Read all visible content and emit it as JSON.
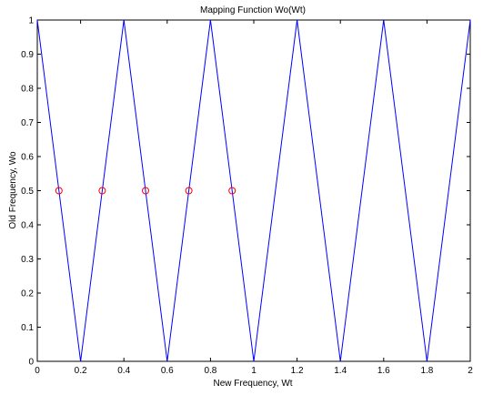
{
  "chart_data": {
    "type": "line",
    "title": "Mapping Function Wo(Wt)",
    "xlabel": "New Frequency, Wt",
    "ylabel": "Old Frequency, Wo",
    "xlim": [
      0,
      2
    ],
    "ylim": [
      0,
      1
    ],
    "xticks": [
      "0",
      "0.2",
      "0.4",
      "0.6",
      "0.8",
      "1",
      "1.2",
      "1.4",
      "1.6",
      "1.8",
      "2"
    ],
    "yticks": [
      "0",
      "0.1",
      "0.2",
      "0.3",
      "0.4",
      "0.5",
      "0.6",
      "0.7",
      "0.8",
      "0.9",
      "1"
    ],
    "grid": false,
    "series": [
      {
        "style": "line",
        "color": "#0000ff",
        "x": [
          0,
          0.2,
          0.4,
          0.6,
          0.8,
          1.0,
          1.2,
          1.4,
          1.6,
          1.8,
          2.0
        ],
        "y": [
          1,
          0,
          1,
          0,
          1,
          0,
          1,
          0,
          1,
          0,
          1
        ]
      },
      {
        "style": "markers",
        "marker": "circle",
        "color": "#ff0000",
        "x": [
          0.1,
          0.3,
          0.5,
          0.7,
          0.9
        ],
        "y": [
          0.5,
          0.5,
          0.5,
          0.5,
          0.5
        ]
      }
    ]
  }
}
